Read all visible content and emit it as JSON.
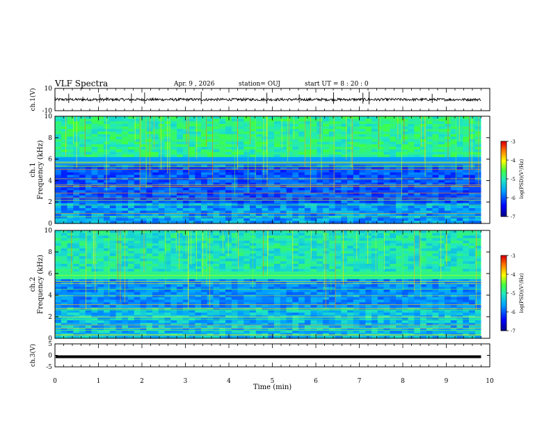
{
  "header": {
    "title": "VLF Spectra",
    "date": "Apr. 9  , 2026",
    "station": "station= OUJ",
    "start": "start  UT  =   8  : 20 : 0"
  },
  "chart_data": [
    {
      "type": "line",
      "panel": "ch1-waveform",
      "ylabel": "ch.1(V)",
      "ylim": [
        -10,
        10
      ],
      "y_ticks": [
        "10",
        "-10"
      ],
      "series": [
        {
          "name": "",
          "level": 0,
          "noise_amplitude": 1.2
        }
      ]
    },
    {
      "type": "heatmap",
      "panel": "ch1-spectrogram",
      "ylabel": "ch.1\nFrequency (kHz)",
      "ylim": [
        0,
        10
      ],
      "y_ticks": [
        "0",
        "2",
        "4",
        "6",
        "8",
        "10"
      ],
      "colorbar": {
        "label": "log(PSD)(V²/Hz)",
        "range": [
          -7,
          -3
        ],
        "ticks": [
          "-3",
          "-4",
          "-5",
          "-6",
          "-7"
        ]
      }
    },
    {
      "type": "heatmap",
      "panel": "ch2-spectrogram",
      "ylabel": "ch.2\nFrequency (kHz)",
      "ylim": [
        0,
        10
      ],
      "y_ticks": [
        "0",
        "2",
        "4",
        "6",
        "8",
        "10"
      ],
      "colorbar": {
        "label": "log(PSD)(V²/Hz)",
        "range": [
          -7,
          -3
        ],
        "ticks": [
          "-3",
          "-4",
          "-5",
          "-6",
          "-7"
        ]
      }
    },
    {
      "type": "line",
      "panel": "ch3-waveform",
      "ylabel": "ch.3(V)",
      "ylim": [
        -5,
        5
      ],
      "y_ticks": [
        "5",
        "0",
        "-5"
      ],
      "series": [
        {
          "name": "",
          "level": -0.6
        }
      ]
    }
  ],
  "xaxis": {
    "label": "Time (min)",
    "range": [
      0,
      10
    ],
    "data_end": 9.8,
    "ticks": [
      "0",
      "1",
      "2",
      "3",
      "4",
      "5",
      "6",
      "7",
      "8",
      "9",
      "10"
    ]
  }
}
